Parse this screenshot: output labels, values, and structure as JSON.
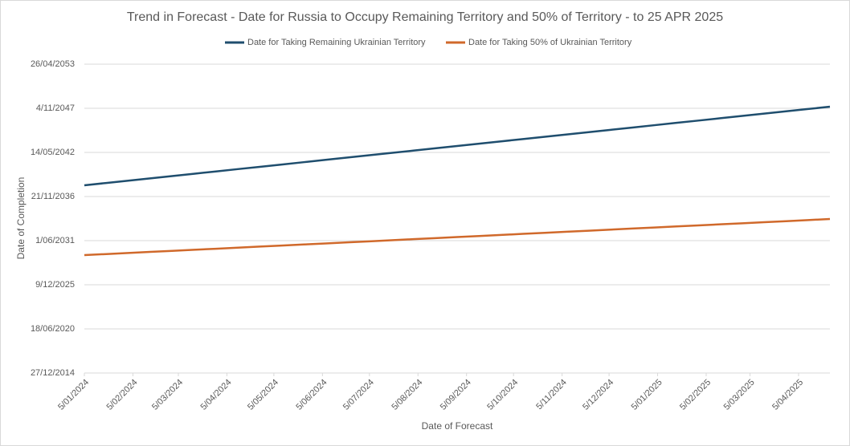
{
  "chart_data": {
    "type": "line",
    "title": "Trend in Forecast - Date for Russia to Occupy Remaining Territory and 50% of Territory - to 25 APR 2025",
    "x_label": "Date of Forecast",
    "y_label": "Date of Completion",
    "x": [
      45296,
      45310,
      45324,
      45338,
      45352,
      45366,
      45380,
      45394,
      45408,
      45422,
      45436,
      45450,
      45464,
      45478,
      45492,
      45506,
      45520,
      45534,
      45548,
      45562,
      45576,
      45590,
      45604,
      45618,
      45632,
      45646,
      45660,
      45674,
      45688,
      45702,
      45716,
      45730,
      45744,
      45758,
      45772
    ],
    "series": [
      {
        "name": "Date for Taking Remaining Ukrainian Territory",
        "color": "#1f4e6e",
        "values": [
          50509,
          50614,
          50719,
          50823,
          50928,
          51033,
          51138,
          51243,
          51347,
          51452,
          51557,
          51662,
          51767,
          51871,
          51976,
          52081,
          52186,
          52291,
          52395,
          52500,
          52605,
          52710,
          52815,
          52919,
          53024,
          53129,
          53234,
          53339,
          53443,
          53548,
          53653,
          53758,
          53863,
          53967,
          54073
        ]
      },
      {
        "name": "Date for Taking 50% of Ukrainian Territory",
        "color": "#d0692b",
        "values": [
          47345,
          47393,
          47441,
          47489,
          47537,
          47586,
          47634,
          47682,
          47730,
          47778,
          47826,
          47874,
          47922,
          47970,
          48018,
          48067,
          48115,
          48163,
          48211,
          48259,
          48307,
          48355,
          48403,
          48451,
          48500,
          48548,
          48596,
          48644,
          48692,
          48740,
          48788,
          48836,
          48884,
          48932,
          48982
        ]
      }
    ],
    "xlim": [
      45296,
      45772
    ],
    "xticks": [
      {
        "value": 45296,
        "label": "5/01/2024"
      },
      {
        "value": 45327,
        "label": "5/02/2024"
      },
      {
        "value": 45356,
        "label": "5/03/2024"
      },
      {
        "value": 45387,
        "label": "5/04/2024"
      },
      {
        "value": 45417,
        "label": "5/05/2024"
      },
      {
        "value": 45448,
        "label": "5/06/2024"
      },
      {
        "value": 45478,
        "label": "5/07/2024"
      },
      {
        "value": 45509,
        "label": "5/08/2024"
      },
      {
        "value": 45540,
        "label": "5/09/2024"
      },
      {
        "value": 45570,
        "label": "5/10/2024"
      },
      {
        "value": 45601,
        "label": "5/11/2024"
      },
      {
        "value": 45631,
        "label": "5/12/2024"
      },
      {
        "value": 45662,
        "label": "5/01/2025"
      },
      {
        "value": 45693,
        "label": "5/02/2025"
      },
      {
        "value": 45721,
        "label": "5/03/2025"
      },
      {
        "value": 45752,
        "label": "5/04/2025"
      }
    ],
    "ylim": [
      42000,
      56000
    ],
    "yticks": [
      {
        "value": 42000,
        "label": "27/12/2014"
      },
      {
        "value": 44000,
        "label": "18/06/2020"
      },
      {
        "value": 46000,
        "label": "9/12/2025"
      },
      {
        "value": 48000,
        "label": "1/06/2031"
      },
      {
        "value": 50000,
        "label": "21/11/2036"
      },
      {
        "value": 52000,
        "label": "14/05/2042"
      },
      {
        "value": 54000,
        "label": "4/11/2047"
      },
      {
        "value": 56000,
        "label": "26/04/2053"
      }
    ],
    "grid": true
  }
}
